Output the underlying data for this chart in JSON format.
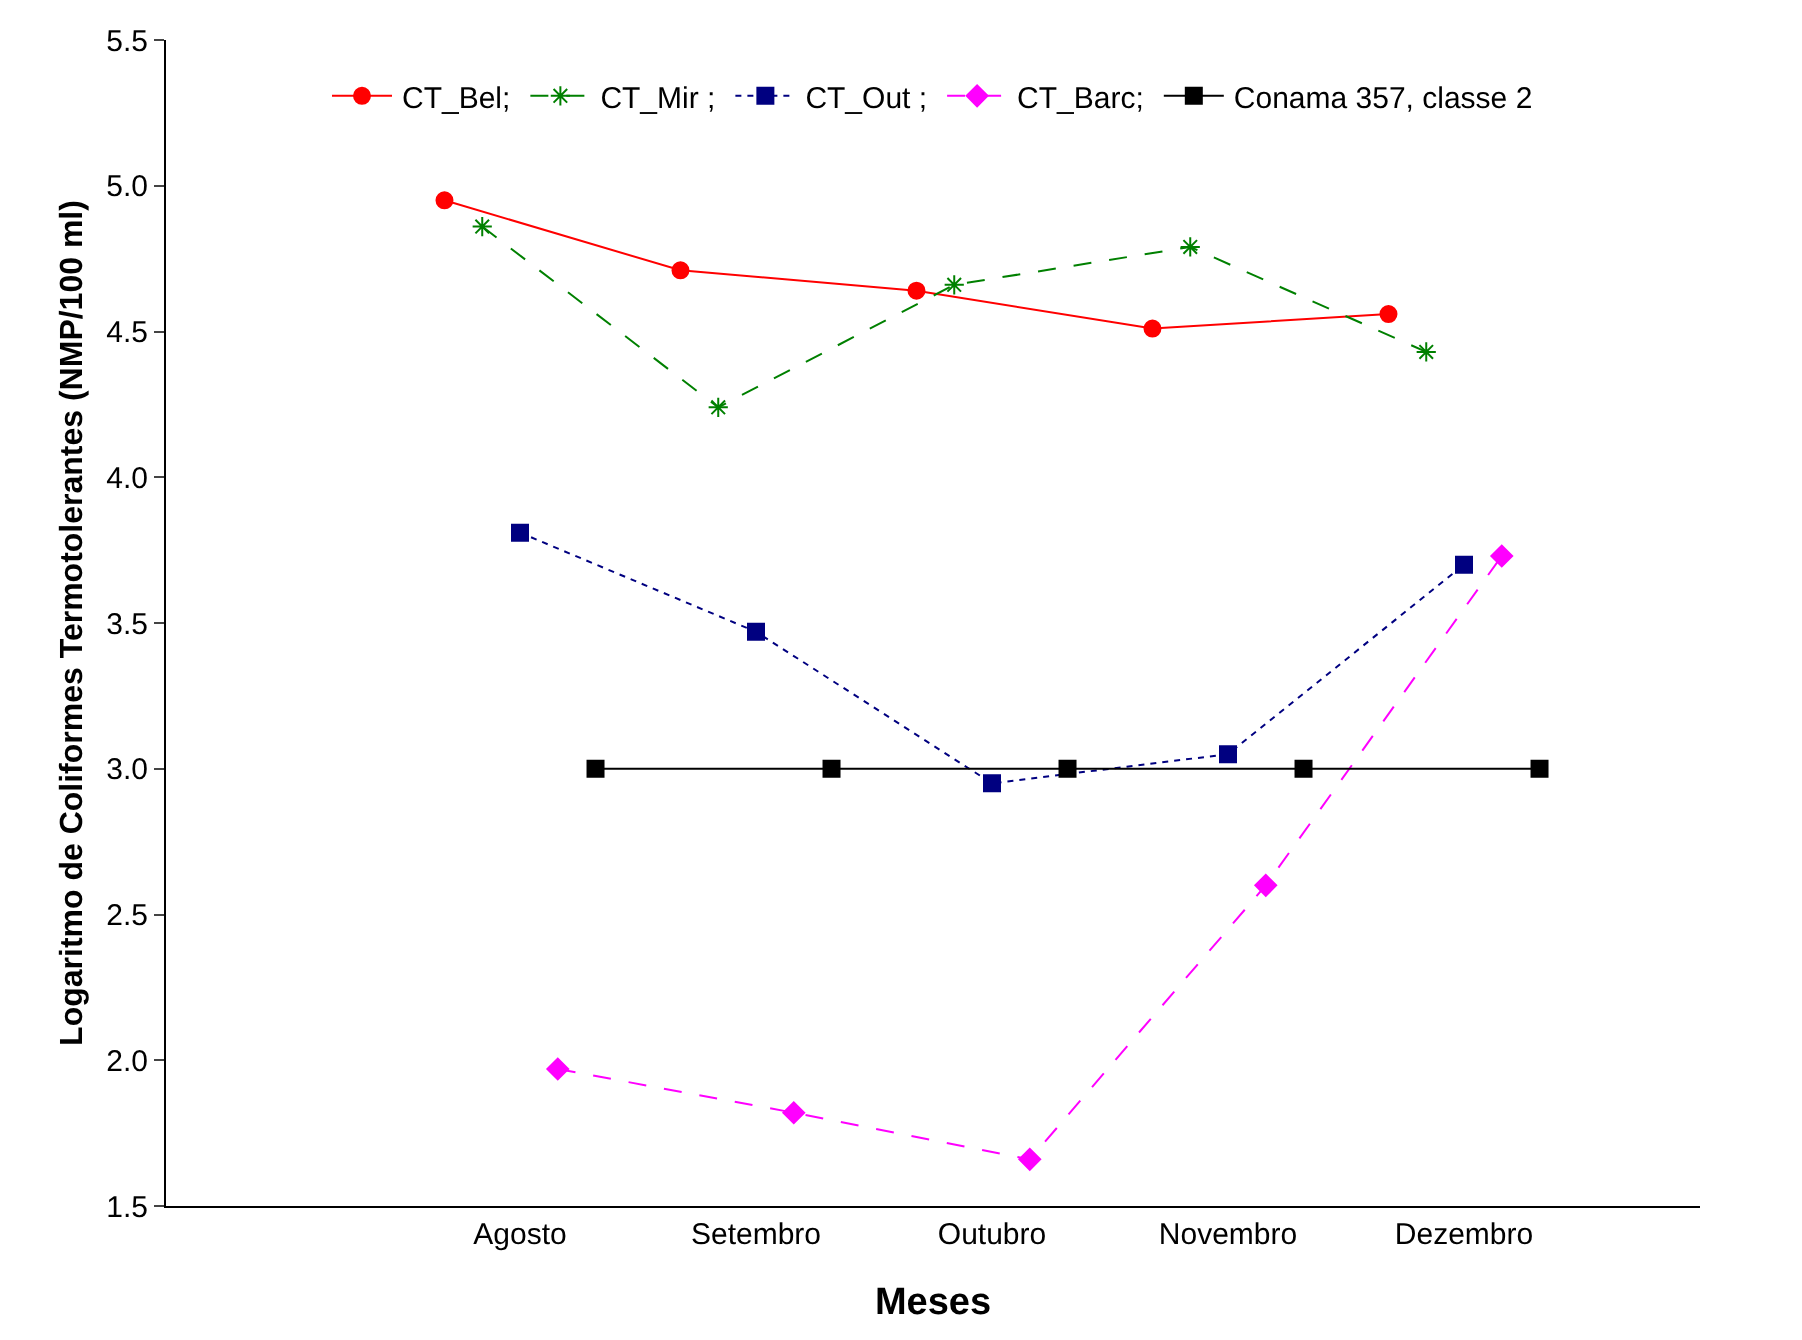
{
  "chart_data": {
    "type": "line",
    "xlabel": "Meses",
    "ylabel": "Logaritmo de Coliformes Termotolerantes (NMP/100 ml)",
    "categories": [
      "Agosto",
      "Setembro",
      "Outubro",
      "Novembro",
      "Dezembro"
    ],
    "series": [
      {
        "name": "CT_Bel;",
        "color": "#ff0000",
        "marker": "circle",
        "line_style": "solid",
        "values": [
          4.95,
          4.71,
          4.64,
          4.51,
          4.56
        ]
      },
      {
        "name": "CT_Mir ;",
        "color": "#008000",
        "marker": "cross",
        "line_style": "dashed",
        "values": [
          4.86,
          4.24,
          4.66,
          4.79,
          4.43
        ]
      },
      {
        "name": "CT_Out ;",
        "color": "#000080",
        "marker": "square",
        "line_style": "dotted",
        "values": [
          3.81,
          3.47,
          2.95,
          3.05,
          3.7
        ]
      },
      {
        "name": "CT_Barc;",
        "color": "#ff00ff",
        "marker": "diamond",
        "line_style": "dashed",
        "values": [
          1.97,
          1.82,
          1.66,
          2.6,
          3.73
        ]
      },
      {
        "name": "Conama 357, classe 2",
        "color": "#000000",
        "marker": "square",
        "line_style": "solid",
        "values": [
          3.0,
          3.0,
          3.0,
          3.0,
          3.0
        ]
      }
    ],
    "ylim": [
      1.5,
      5.5
    ],
    "yticks": [
      1.5,
      {
        "value": 2,
        "label": "2.0"
      },
      2.5,
      {
        "value": 3,
        "label": "3.0"
      },
      3.5,
      {
        "value": 4,
        "label": "4.0"
      },
      4.5,
      {
        "value": 5,
        "label": "5.0"
      },
      5.5
    ],
    "grid": false,
    "legend": "top"
  }
}
